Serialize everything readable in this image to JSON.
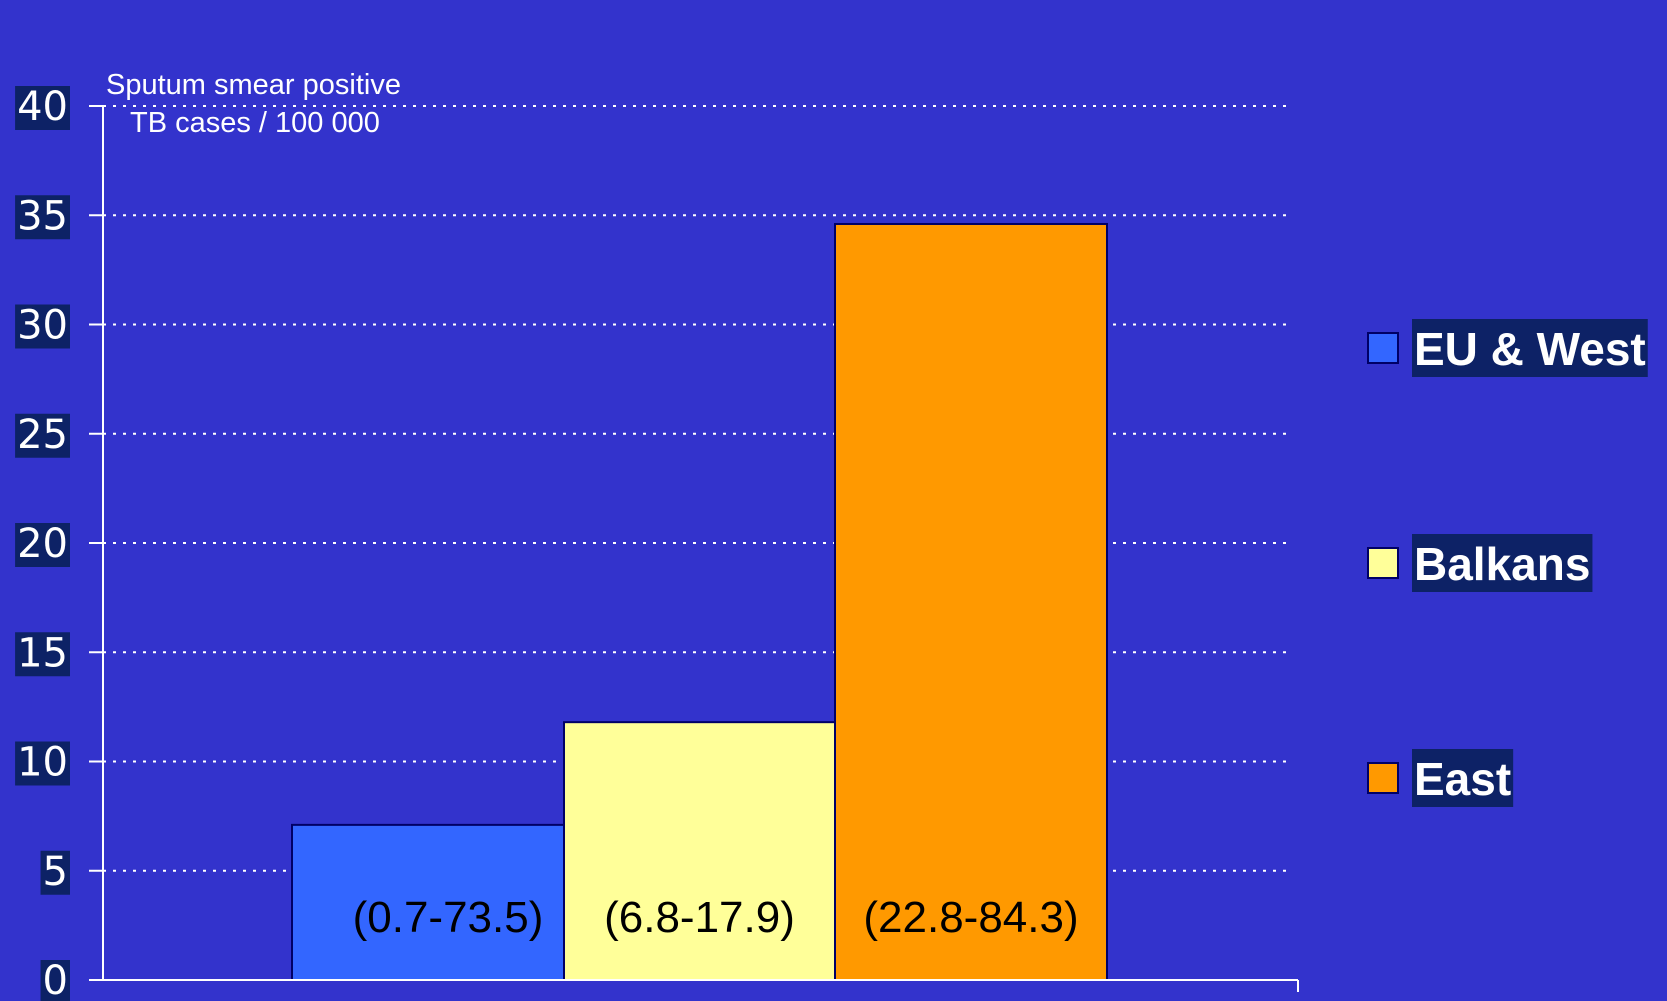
{
  "chart_data": {
    "type": "bar",
    "ylabel_line1": "Sputum smear positive",
    "ylabel_line2": "TB cases / 100 000",
    "ylim": [
      0,
      40
    ],
    "yticks": [
      0,
      5,
      10,
      15,
      20,
      25,
      30,
      35,
      40
    ],
    "grid": true,
    "legend_position": "right",
    "series": [
      {
        "name": "EU & West",
        "value": 7.1,
        "range_label": "(0.7-73.5)",
        "color": "#3366ff"
      },
      {
        "name": "Balkans",
        "value": 11.8,
        "range_label": "(6.8-17.9)",
        "color": "#ffff99"
      },
      {
        "name": "East",
        "value": 34.6,
        "range_label": "(22.8-84.3)",
        "color": "#ff9900"
      }
    ]
  }
}
